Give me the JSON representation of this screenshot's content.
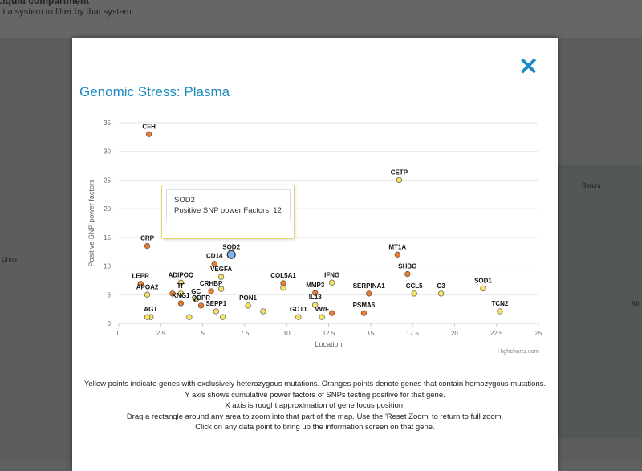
{
  "background": {
    "heading": "Liquid compartment",
    "subtitle": "ct a system to filter by that system.",
    "labels": {
      "urine": "Urine",
      "serum": "Serum",
      "milk": "Mil"
    }
  },
  "modal": {
    "title": "Genomic Stress: Plasma",
    "close_icon": "close-icon"
  },
  "tooltip": {
    "name": "SOD2",
    "text": "Positive SNP power Factors: 12"
  },
  "credit": "Highcharts.com",
  "notes": [
    "Yellow points indicate genes with exclusively heterozygous mutations. Oranges points denote genes that contain homozygous mutations.",
    "Y axis shows cumulative power factors of SNPs testing positive for that gene.",
    "X axis is rought approximation of gene locus position.",
    "Drag a rectangle around any area to zoom into that part of the map. Use the 'Reset Zoom' to return to full zoom.",
    "Click on any data point to bring up the information screen on that gene."
  ],
  "colors": {
    "yellow": "#f7e463",
    "orange": "#ee7a2a",
    "highlight": "#7cb5ec",
    "accent": "#1c8cc0"
  },
  "chart_data": {
    "type": "scatter",
    "title": "Genomic Stress: Plasma",
    "xlabel": "Location",
    "ylabel": "Positive SNP power factors",
    "xlim": [
      0,
      25
    ],
    "ylim": [
      0,
      35
    ],
    "xticks": [
      "0",
      "2.5",
      "5",
      "7.5",
      "10",
      "12.5",
      "15",
      "17.5",
      "20",
      "22.5",
      "25"
    ],
    "yticks": [
      "0",
      "5",
      "10",
      "15",
      "20",
      "25",
      "30",
      "35"
    ],
    "grid": true,
    "points": [
      {
        "name": "CFH",
        "x": 1.8,
        "y": 33,
        "type": "orange"
      },
      {
        "name": "CRP",
        "x": 1.7,
        "y": 13.5,
        "type": "orange"
      },
      {
        "name": "SOD2",
        "x": 6.7,
        "y": 12,
        "type": "highlight"
      },
      {
        "name": "CD14",
        "x": 5.7,
        "y": 10.4,
        "type": "orange"
      },
      {
        "name": "VEGFA",
        "x": 6.1,
        "y": 8.1,
        "type": "yellow"
      },
      {
        "name": "LEPR",
        "x": 1.3,
        "y": 6.9,
        "type": "orange"
      },
      {
        "name": "APOA2",
        "x": 1.7,
        "y": 5,
        "type": "yellow"
      },
      {
        "name": "ADIPOQ",
        "x": 3.7,
        "y": 7.1,
        "type": "yellow"
      },
      {
        "name": "TF",
        "x": 3.7,
        "y": 5.2,
        "type": "yellow"
      },
      {
        "name": "",
        "x": 3.2,
        "y": 5.2,
        "type": "orange"
      },
      {
        "name": "KNG1",
        "x": 3.7,
        "y": 3.5,
        "type": "orange"
      },
      {
        "name": "GC",
        "x": 4.6,
        "y": 4.2,
        "type": "yellow"
      },
      {
        "name": "CRHBP",
        "x": 5.5,
        "y": 5.6,
        "type": "orange"
      },
      {
        "name": "",
        "x": 6.1,
        "y": 6,
        "type": "yellow"
      },
      {
        "name": "QDPR",
        "x": 4.9,
        "y": 3.1,
        "type": "orange"
      },
      {
        "name": "",
        "x": 4.2,
        "y": 1.1,
        "type": "yellow"
      },
      {
        "name": "SEPP1",
        "x": 5.8,
        "y": 2.1,
        "type": "yellow"
      },
      {
        "name": "",
        "x": 6.2,
        "y": 1.1,
        "type": "yellow"
      },
      {
        "name": "AGT",
        "x": 1.9,
        "y": 1.1,
        "type": "yellow"
      },
      {
        "name": "",
        "x": 1.7,
        "y": 1.1,
        "type": "yellow"
      },
      {
        "name": "PON1",
        "x": 7.7,
        "y": 3.1,
        "type": "yellow"
      },
      {
        "name": "",
        "x": 8.6,
        "y": 2.1,
        "type": "yellow"
      },
      {
        "name": "COL5A1",
        "x": 9.8,
        "y": 7,
        "type": "orange"
      },
      {
        "name": "",
        "x": 9.8,
        "y": 6.2,
        "type": "yellow"
      },
      {
        "name": "IFNG",
        "x": 12.7,
        "y": 7.1,
        "type": "yellow"
      },
      {
        "name": "MMP3",
        "x": 11.7,
        "y": 5.3,
        "type": "orange"
      },
      {
        "name": "IL18",
        "x": 11.7,
        "y": 3.2,
        "type": "yellow"
      },
      {
        "name": "GOT1",
        "x": 10.7,
        "y": 1.1,
        "type": "yellow"
      },
      {
        "name": "VWF",
        "x": 12.1,
        "y": 1.1,
        "type": "yellow"
      },
      {
        "name": "",
        "x": 12.7,
        "y": 1.8,
        "type": "orange"
      },
      {
        "name": "CETP",
        "x": 16.7,
        "y": 25,
        "type": "yellow"
      },
      {
        "name": "MT1A",
        "x": 16.6,
        "y": 12,
        "type": "orange"
      },
      {
        "name": "SHBG",
        "x": 17.2,
        "y": 8.6,
        "type": "orange"
      },
      {
        "name": "SERPINA1",
        "x": 14.9,
        "y": 5.2,
        "type": "orange"
      },
      {
        "name": "PSMA6",
        "x": 14.6,
        "y": 1.8,
        "type": "orange"
      },
      {
        "name": "CCL5",
        "x": 17.6,
        "y": 5.2,
        "type": "yellow"
      },
      {
        "name": "C3",
        "x": 19.2,
        "y": 5.2,
        "type": "yellow"
      },
      {
        "name": "SOD1",
        "x": 21.7,
        "y": 6.1,
        "type": "yellow"
      },
      {
        "name": "TCN2",
        "x": 22.7,
        "y": 2.1,
        "type": "yellow"
      }
    ]
  }
}
